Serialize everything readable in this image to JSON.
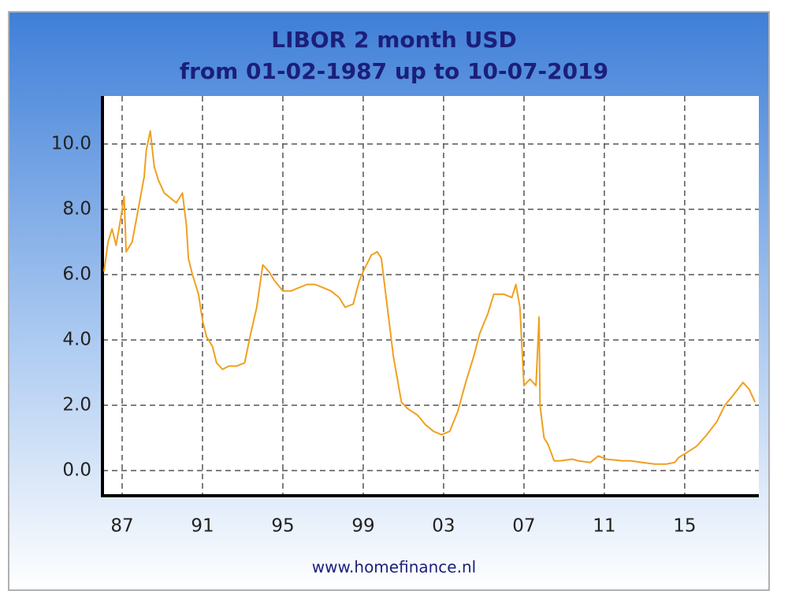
{
  "chart_data": {
    "type": "line",
    "title": "LIBOR 2 month USD",
    "subtitle": "from 01-02-1987 up to 10-07-2019",
    "source": "www.homefinance.nl",
    "color": "#f0a020",
    "grid": true,
    "x": [
      1986.1,
      1986.3,
      1986.5,
      1986.7,
      1986.9,
      1987.1,
      1987.2,
      1987.5,
      1987.8,
      1988.1,
      1988.2,
      1988.4,
      1988.6,
      1988.8,
      1989.1,
      1989.5,
      1989.7,
      1990.0,
      1990.2,
      1990.3,
      1990.5,
      1990.8,
      1991.0,
      1991.2,
      1991.5,
      1991.7,
      1992.0,
      1992.3,
      1992.7,
      1993.1,
      1993.4,
      1993.7,
      1994.0,
      1994.3,
      1994.6,
      1995.0,
      1995.4,
      1995.8,
      1996.2,
      1996.6,
      1997.0,
      1997.4,
      1997.8,
      1998.1,
      1998.5,
      1998.8,
      1999.0,
      1999.4,
      1999.7,
      1999.9,
      2000.1,
      2000.3,
      2000.5,
      2000.7,
      2000.9,
      2001.2,
      2001.7,
      2002.1,
      2002.5,
      2002.9,
      2003.3,
      2003.7,
      2004.1,
      2004.5,
      2004.8,
      2005.2,
      2005.5,
      2006.0,
      2006.4,
      2006.6,
      2006.8,
      2007.0,
      2007.3,
      2007.6,
      2007.75,
      2007.8,
      2008.0,
      2008.2,
      2008.5,
      2008.8,
      2009.4,
      2009.7,
      2010.3,
      2010.7,
      2011.1,
      2011.9,
      2012.3,
      2012.9,
      2013.5,
      2014.1,
      2014.5,
      2014.7,
      2015.1,
      2015.6,
      2016.1,
      2016.6,
      2017.0,
      2017.4,
      2017.9,
      2018.2,
      2018.5
    ],
    "values": [
      6.1,
      7.0,
      7.4,
      6.9,
      7.6,
      8.4,
      6.7,
      7.0,
      8.0,
      9.0,
      9.8,
      10.4,
      9.3,
      8.9,
      8.5,
      8.3,
      8.2,
      8.5,
      7.5,
      6.5,
      6.0,
      5.4,
      4.6,
      4.1,
      3.8,
      3.3,
      3.1,
      3.2,
      3.2,
      3.3,
      4.2,
      5.0,
      6.3,
      6.1,
      5.8,
      5.5,
      5.5,
      5.6,
      5.7,
      5.7,
      5.6,
      5.5,
      5.3,
      5.0,
      5.1,
      5.8,
      6.1,
      6.6,
      6.7,
      6.5,
      5.5,
      4.5,
      3.5,
      2.8,
      2.1,
      1.9,
      1.7,
      1.4,
      1.2,
      1.1,
      1.2,
      1.8,
      2.7,
      3.5,
      4.2,
      4.8,
      5.4,
      5.4,
      5.3,
      5.7,
      5.0,
      2.6,
      2.8,
      2.6,
      4.7,
      2.0,
      1.0,
      0.8,
      0.3,
      0.3,
      0.35,
      0.3,
      0.25,
      0.45,
      0.35,
      0.3,
      0.3,
      0.25,
      0.2,
      0.2,
      0.25,
      0.4,
      0.55,
      0.75,
      1.1,
      1.5,
      2.0,
      2.3,
      2.7,
      2.5,
      2.1
    ],
    "xlim": [
      1986.02,
      2018.69
    ],
    "xticks": [
      {
        "value": 1987,
        "label": "87"
      },
      {
        "value": 1991,
        "label": "91"
      },
      {
        "value": 1995,
        "label": "95"
      },
      {
        "value": 1999,
        "label": "99"
      },
      {
        "value": 2003,
        "label": "03"
      },
      {
        "value": 2007,
        "label": "07"
      },
      {
        "value": 2011,
        "label": "11"
      },
      {
        "value": 2015,
        "label": "15"
      }
    ],
    "ylim": [
      -0.77,
      11.47
    ],
    "yticks": [
      {
        "value": 0,
        "label": "0.0"
      },
      {
        "value": 2,
        "label": "2.0"
      },
      {
        "value": 4,
        "label": "4.0"
      },
      {
        "value": 6,
        "label": "6.0"
      },
      {
        "value": 8,
        "label": "8.0"
      },
      {
        "value": 10,
        "label": "10.0"
      }
    ]
  }
}
